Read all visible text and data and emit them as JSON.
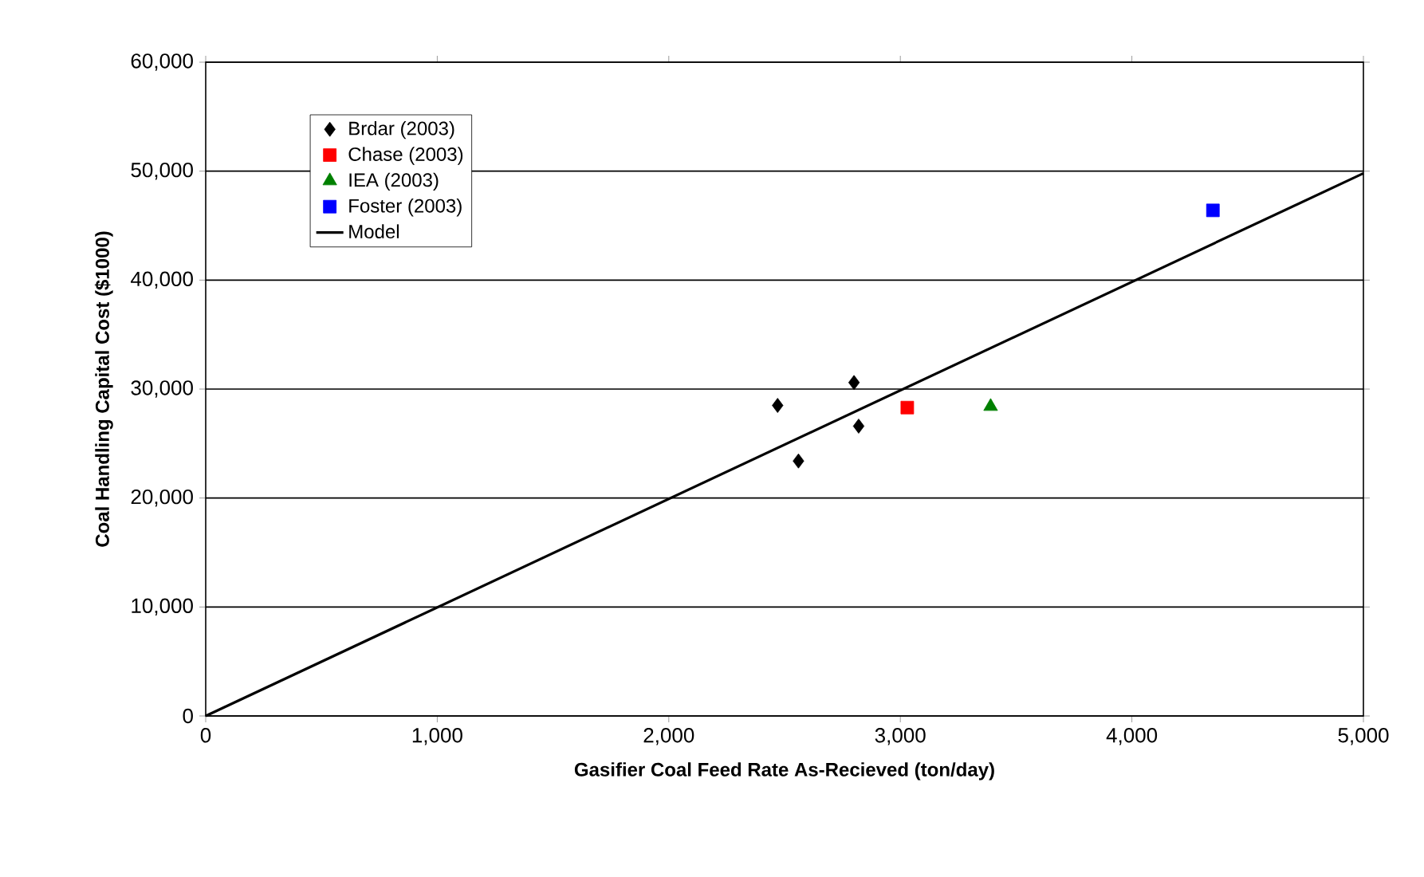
{
  "chart_data": {
    "type": "scatter",
    "xlabel": "Gasifier Coal Feed Rate As-Recieved (ton/day)",
    "ylabel": "Coal Handling Capital Cost ($1000)",
    "xlim": [
      0,
      5000
    ],
    "ylim": [
      0,
      60000
    ],
    "xticks": [
      0,
      {
        "value": 1000,
        "label": "1,000"
      },
      {
        "value": 2000,
        "label": "2,000"
      },
      {
        "value": 3000,
        "label": "3,000"
      },
      {
        "value": 4000,
        "label": "4,000"
      },
      {
        "value": 5000,
        "label": "5,000"
      }
    ],
    "yticks": [
      0,
      {
        "value": 10000,
        "label": "10,000"
      },
      {
        "value": 20000,
        "label": "20,000"
      },
      {
        "value": 30000,
        "label": "30,000"
      },
      {
        "value": 40000,
        "label": "40,000"
      },
      {
        "value": 50000,
        "label": "50,000"
      },
      {
        "value": 60000,
        "label": "60,000"
      }
    ],
    "grid": "y",
    "legend": "top left",
    "series": [
      {
        "name": "Brdar (2003)",
        "color": "#000000",
        "marker": "diamond",
        "x": [
          2470,
          2560,
          2800,
          2820
        ],
        "values": [
          28500,
          23400,
          30600,
          26600
        ]
      },
      {
        "name": "Chase (2003)",
        "color": "#ff0000",
        "marker": "square",
        "x": [
          3030
        ],
        "values": [
          28300
        ]
      },
      {
        "name": "IEA (2003)",
        "color": "#008000",
        "marker": "triangle",
        "x": [
          3390
        ],
        "values": [
          28400
        ]
      },
      {
        "name": "Foster (2003)",
        "color": "#0000ff",
        "marker": "square",
        "x": [
          4350
        ],
        "values": [
          46400
        ]
      },
      {
        "name": "Model",
        "type": "line",
        "color": "#000000",
        "marker": "none",
        "line_style": "solid",
        "x": [
          0,
          5000
        ],
        "values": [
          0,
          49800
        ]
      }
    ]
  }
}
